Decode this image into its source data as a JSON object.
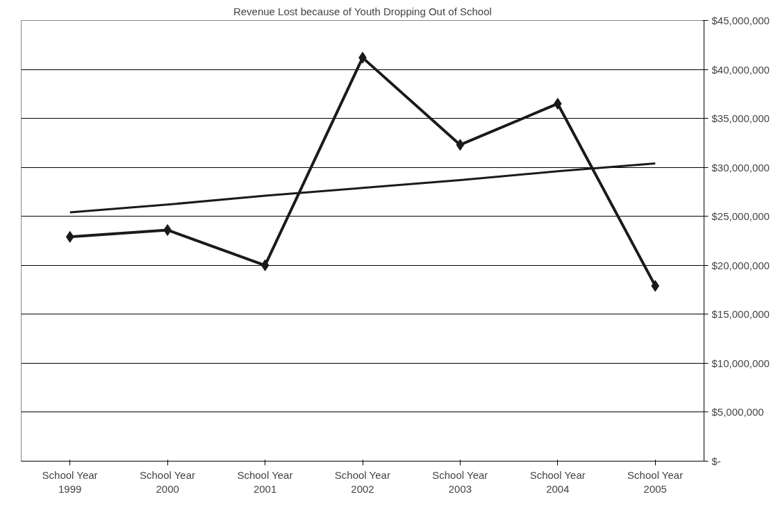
{
  "chart_data": {
    "type": "line",
    "title": "Revenue Lost because of Youth Dropping Out of School",
    "categories": [
      "School Year 1999",
      "School Year 2000",
      "School Year 2001",
      "School Year 2002",
      "School Year 2003",
      "School Year 2004",
      "School Year 2005"
    ],
    "series": [
      {
        "color": "#1a1a1a",
        "marker": "diamond",
        "values": [
          22900000,
          23600000,
          20000000,
          41200000,
          32300000,
          36500000,
          17900000
        ]
      },
      {
        "type": "line",
        "color": "#1a1a1a",
        "marker": "none",
        "values": [
          25400000,
          26200000,
          27100000,
          27900000,
          28700000,
          29600000,
          30400000
        ]
      }
    ],
    "ylim": [
      0,
      45000000
    ],
    "yticks": [
      {
        "value": 0,
        "label": "$-"
      },
      {
        "value": 5000000,
        "label": "$5,000,000"
      },
      {
        "value": 10000000,
        "label": "$10,000,000"
      },
      {
        "value": 15000000,
        "label": "$15,000,000"
      },
      {
        "value": 20000000,
        "label": "$20,000,000"
      },
      {
        "value": 25000000,
        "label": "$25,000,000"
      },
      {
        "value": 30000000,
        "label": "$30,000,000"
      },
      {
        "value": 35000000,
        "label": "$35,000,000"
      },
      {
        "value": 40000000,
        "label": "$40,000,000"
      },
      {
        "value": 45000000,
        "label": "$45,000,000"
      }
    ],
    "grid": "y",
    "line_style": "solid"
  }
}
